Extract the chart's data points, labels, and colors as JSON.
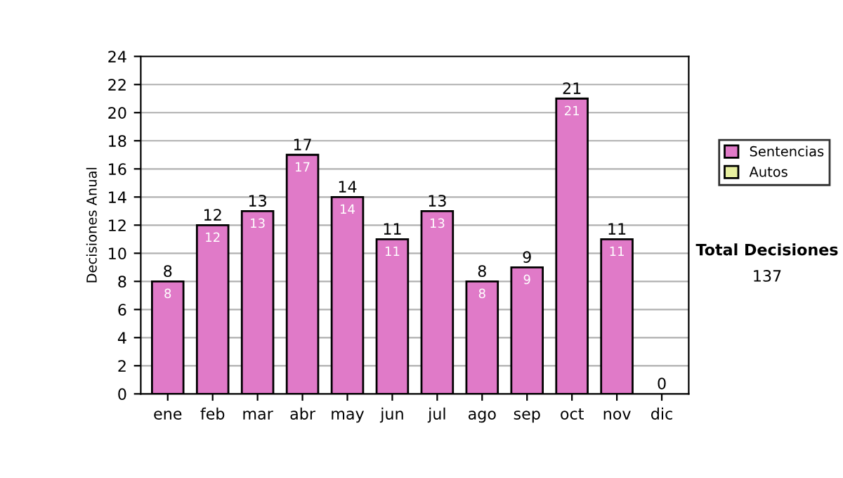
{
  "chart_data": {
    "type": "bar",
    "stacked": true,
    "ylabel": "Decisiones Anual",
    "categories": [
      "ene",
      "feb",
      "mar",
      "abr",
      "may",
      "jun",
      "jul",
      "ago",
      "sep",
      "oct",
      "nov",
      "dic"
    ],
    "series": [
      {
        "name": "Sentencias",
        "color": "#e07ac8",
        "values": [
          8,
          12,
          13,
          17,
          14,
          11,
          13,
          8,
          9,
          21,
          11,
          0
        ],
        "value_labels": [
          "8",
          "12",
          "13",
          "17",
          "14",
          "11",
          "13",
          "8",
          "9",
          "21",
          "11",
          null
        ]
      },
      {
        "name": "Autos",
        "color": "#e8f0a0",
        "values": [
          0,
          0,
          0,
          0,
          0,
          0,
          0,
          0,
          0,
          0,
          0,
          0
        ]
      }
    ],
    "totals": [
      "8",
      "12",
      "13",
      "17",
      "14",
      "11",
      "13",
      "8",
      "9",
      "21",
      "11",
      "0"
    ],
    "ylim": [
      0,
      24
    ],
    "yticks": [
      0,
      2,
      4,
      6,
      8,
      10,
      12,
      14,
      16,
      18,
      20,
      22,
      24
    ],
    "grid": "y",
    "legend": "right",
    "annotations": [
      "Total Decisiones",
      "137"
    ]
  }
}
